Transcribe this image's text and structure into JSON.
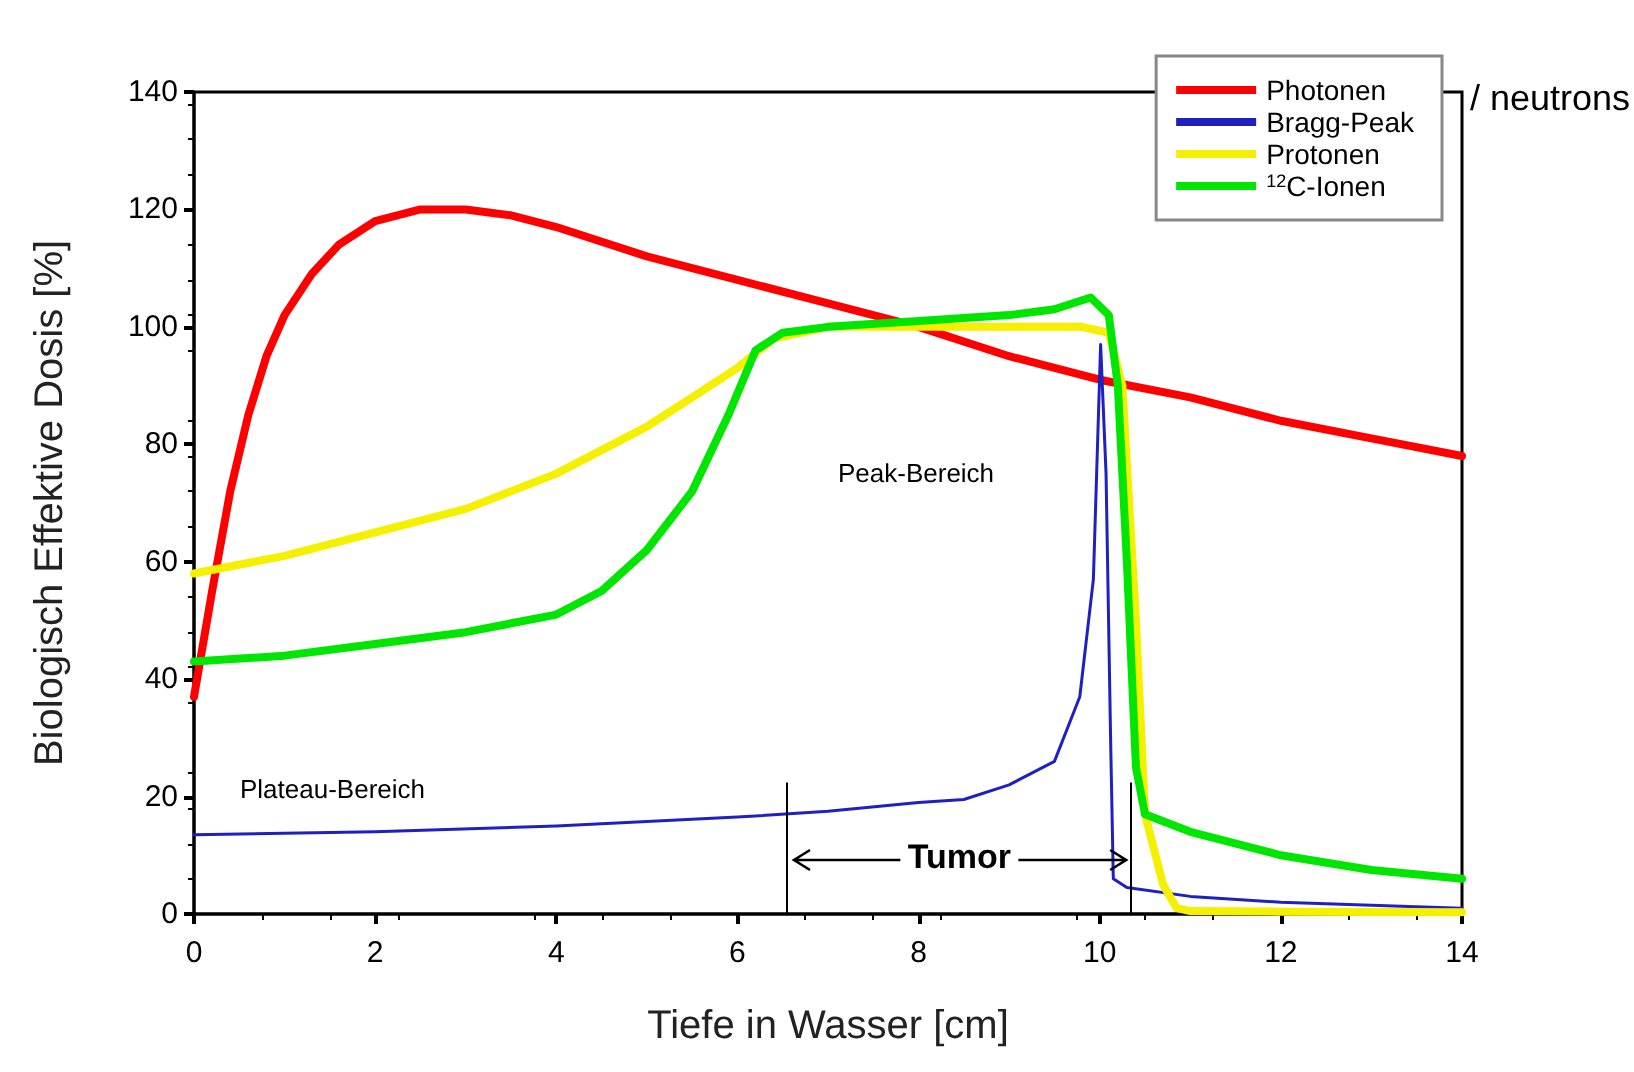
{
  "chart_data": {
    "type": "line",
    "xlabel": "Tiefe in Wasser [cm]",
    "ylabel": "Biologisch Effektive Dosis [%]",
    "xlim": [
      0,
      14
    ],
    "xticks": [
      0,
      2,
      4,
      6,
      8,
      10,
      12,
      14
    ],
    "ylim": [
      0,
      140
    ],
    "yticks": [
      0,
      20,
      40,
      60,
      80,
      100,
      120,
      140
    ],
    "grid": false,
    "legend": "top right",
    "marker": "none",
    "line_style": "solid",
    "series": [
      {
        "name": "Photonen",
        "color": "#ff0000",
        "x": [
          0,
          0.2,
          0.4,
          0.6,
          0.8,
          1,
          1.3,
          1.6,
          2,
          2.5,
          3,
          3.5,
          4,
          5,
          6,
          7,
          8,
          9,
          10,
          11,
          12,
          13,
          14
        ],
        "values": [
          37,
          55,
          72,
          85,
          95,
          102,
          109,
          114,
          118,
          120,
          120,
          119,
          117,
          112,
          108,
          104,
          100,
          95,
          91,
          88,
          84,
          81,
          78
        ]
      },
      {
        "name": "Bragg-Peak",
        "color": "#2020c0",
        "x": [
          0,
          2,
          4,
          6,
          7,
          8,
          8.5,
          9,
          9.5,
          9.78,
          9.93,
          10.01,
          10.07,
          10.12,
          10.15,
          10.3,
          11,
          12,
          13,
          14
        ],
        "values": [
          13.5,
          14,
          15,
          16.5,
          17.5,
          19,
          19.5,
          22,
          26,
          37,
          57,
          97,
          75,
          30,
          6,
          4.5,
          3,
          2,
          1.5,
          1
        ]
      },
      {
        "name": "Protonen",
        "color": "#f5f000",
        "x": [
          0,
          1,
          2,
          3,
          4,
          5,
          5.5,
          6,
          6.4,
          7,
          8,
          9,
          9.8,
          10.1,
          10.25,
          10.4,
          10.5,
          10.7,
          10.85,
          11,
          12,
          14
        ],
        "values": [
          58,
          61,
          65,
          69,
          75,
          83,
          88,
          93,
          98,
          100,
          100,
          100,
          100,
          99,
          90,
          50,
          17,
          5,
          1,
          0.5,
          0.4,
          0.3
        ]
      },
      {
        "name": "$^{12}$C-Ionen",
        "color": "#00e600",
        "x": [
          0,
          1,
          2,
          3,
          4,
          4.5,
          5,
          5.5,
          5.9,
          6.2,
          6.5,
          7,
          8,
          9,
          9.5,
          9.9,
          10.1,
          10.2,
          10.3,
          10.4,
          10.5,
          11,
          12,
          13,
          14
        ],
        "values": [
          43,
          44,
          46,
          48,
          51,
          55,
          62,
          72,
          85,
          96,
          99,
          100,
          101,
          102,
          103,
          105,
          102,
          90,
          60,
          25,
          17,
          14,
          10,
          7.5,
          6
        ]
      }
    ],
    "ref_lines": [
      {
        "axis": "x",
        "value": 6.55,
        "color": "#000000"
      },
      {
        "axis": "x",
        "value": 10.35,
        "color": "#000000"
      }
    ],
    "annotations": [
      "Plateau-Bereich",
      "Peak-Bereich",
      "/ neutrons",
      "Tumor"
    ]
  }
}
